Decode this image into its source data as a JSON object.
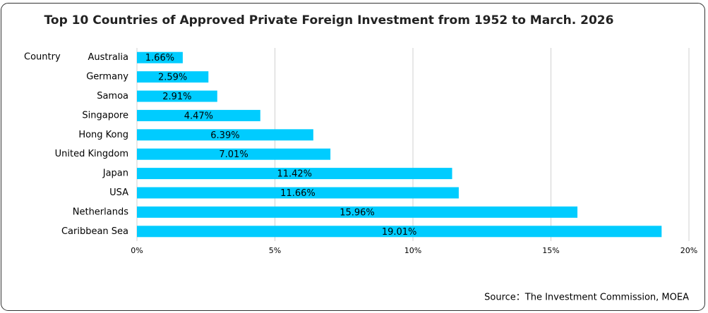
{
  "chart_data": {
    "type": "hbar",
    "title": "Top 10 Countries of Approved Private Foreign Investment from 1952 to March. 2026",
    "y_label": "Country",
    "source": "Source：The Investment Commission, MOEA",
    "categories": [
      "Australia",
      "Germany",
      "Samoa",
      "Singapore",
      "Hong Kong",
      "United Kingdom",
      "Japan",
      "USA",
      "Netherlands",
      "Caribbean Sea"
    ],
    "values": [
      1.66,
      2.59,
      2.91,
      4.47,
      6.39,
      7.01,
      11.42,
      11.66,
      15.96,
      19.01
    ],
    "value_labels": [
      "1.66%",
      "2.59%",
      "2.91%",
      "4.47%",
      "6.39%",
      "7.01%",
      "11.42%",
      "11.66%",
      "15.96%",
      "19.01%"
    ],
    "color": "#00ccff",
    "xlim": [
      0,
      20
    ],
    "xticks": [
      {
        "value": 0,
        "label": "0%"
      },
      {
        "value": 5,
        "label": "5%"
      },
      {
        "value": 10,
        "label": "10%"
      },
      {
        "value": 15,
        "label": "15%"
      },
      {
        "value": 20,
        "label": "20%"
      }
    ],
    "grid": true
  }
}
